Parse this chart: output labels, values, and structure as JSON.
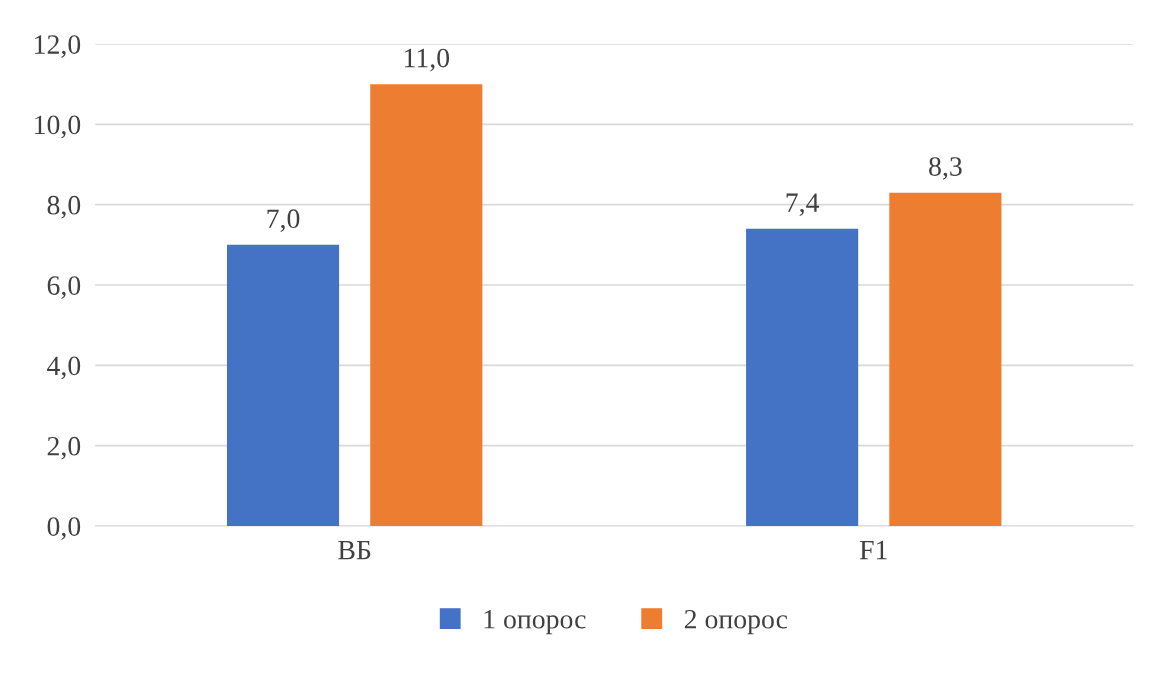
{
  "chart_data": {
    "type": "bar",
    "categories": [
      "ВБ",
      "F1"
    ],
    "series": [
      {
        "name": "1 опорос",
        "color": "#4472c4",
        "values": [
          7.0,
          7.4
        ],
        "value_labels": [
          "7,0",
          "7,4"
        ]
      },
      {
        "name": "2 опорос",
        "color": "#ed7d31",
        "values": [
          11.0,
          8.3
        ],
        "value_labels": [
          "11,0",
          "8,3"
        ]
      }
    ],
    "ylim": [
      0,
      12
    ],
    "yticks": [
      {
        "value": 0,
        "label": "0,0"
      },
      {
        "value": 2,
        "label": "2,0"
      },
      {
        "value": 4,
        "label": "4,0"
      },
      {
        "value": 6,
        "label": "6,0"
      },
      {
        "value": 8,
        "label": "8,0"
      },
      {
        "value": 10,
        "label": "10,0"
      },
      {
        "value": 12,
        "label": "12,0"
      }
    ],
    "grid": "y",
    "legend": "bottom"
  }
}
